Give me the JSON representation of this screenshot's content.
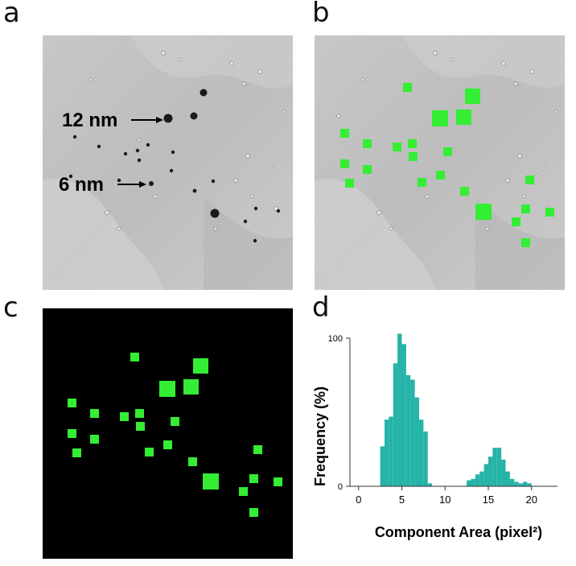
{
  "panels": {
    "a": {
      "letter": "a",
      "label_12": "12 nm",
      "label_6": "6 nm"
    },
    "b": {
      "letter": "b"
    },
    "c": {
      "letter": "c"
    },
    "d": {
      "letter": "d"
    }
  },
  "colors": {
    "marker": "#33ee33",
    "histogram": "#26b3a8",
    "background_panel_c": "#000000"
  },
  "chart_data": {
    "type": "bar",
    "xlabel": "Component Area (pixel²)",
    "ylabel": "Frequency (%)",
    "xlim": [
      -1,
      23
    ],
    "ylim": [
      0,
      100
    ],
    "xticks": [
      0,
      5,
      10,
      15,
      20
    ],
    "yticks": [
      0,
      100
    ],
    "bin_width": 0.5,
    "bins": [
      {
        "x": 2.5,
        "y": 27
      },
      {
        "x": 3.0,
        "y": 45
      },
      {
        "x": 3.5,
        "y": 47
      },
      {
        "x": 4.0,
        "y": 83
      },
      {
        "x": 4.5,
        "y": 103
      },
      {
        "x": 5.0,
        "y": 96
      },
      {
        "x": 5.5,
        "y": 75
      },
      {
        "x": 6.0,
        "y": 72
      },
      {
        "x": 6.5,
        "y": 60
      },
      {
        "x": 7.0,
        "y": 45
      },
      {
        "x": 7.5,
        "y": 37
      },
      {
        "x": 8.0,
        "y": 2
      },
      {
        "x": 12.5,
        "y": 4
      },
      {
        "x": 13.0,
        "y": 5
      },
      {
        "x": 13.5,
        "y": 8
      },
      {
        "x": 14.0,
        "y": 10
      },
      {
        "x": 14.5,
        "y": 15
      },
      {
        "x": 15.0,
        "y": 20
      },
      {
        "x": 15.5,
        "y": 26
      },
      {
        "x": 16.0,
        "y": 26
      },
      {
        "x": 16.5,
        "y": 18
      },
      {
        "x": 17.0,
        "y": 10
      },
      {
        "x": 17.5,
        "y": 5
      },
      {
        "x": 18.0,
        "y": 3
      },
      {
        "x": 18.5,
        "y": 2
      },
      {
        "x": 19.0,
        "y": 3
      },
      {
        "x": 19.5,
        "y": 2
      }
    ]
  }
}
